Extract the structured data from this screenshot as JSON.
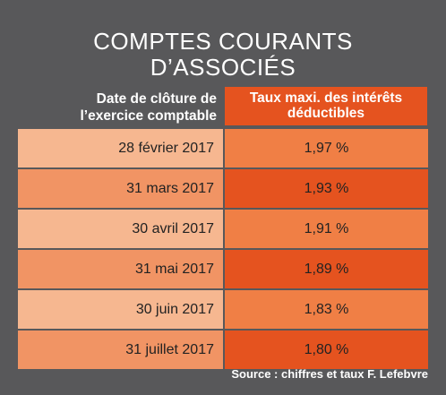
{
  "title": {
    "line1": "COMPTES COURANTS",
    "line2": "D’ASSOCIÉS"
  },
  "header": {
    "date_col": {
      "line1": "Date de clôture de",
      "line2": "l’exercice comptable"
    },
    "rate_col": {
      "line1": "Taux maxi. des intérêts",
      "line2": "déductibles"
    }
  },
  "rows": [
    {
      "date": "28 février 2017",
      "rate": "1,97 %"
    },
    {
      "date": "31 mars 2017",
      "rate": "1,93 %"
    },
    {
      "date": "30 avril 2017",
      "rate": "1,91 %"
    },
    {
      "date": "31 mai 2017",
      "rate": "1,89 %"
    },
    {
      "date": "30 juin 2017",
      "rate": "1,83 %"
    },
    {
      "date": "31 juillet 2017",
      "rate": "1,80 %"
    }
  ],
  "source": "Source : chiffres et taux F. Lefebvre",
  "colors": {
    "background": "#58585a",
    "accent": "#e5531f",
    "light_date": "#f6b790",
    "dark_date": "#f19464",
    "light_rate": "#f07f45"
  }
}
